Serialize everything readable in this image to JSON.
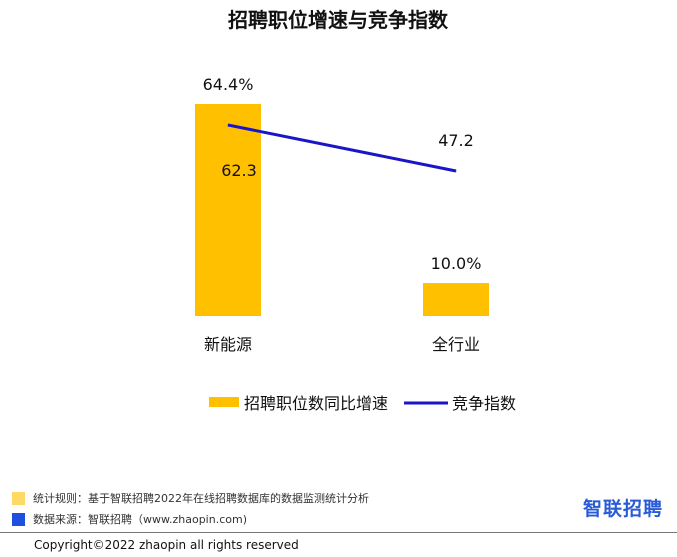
{
  "chart_data": {
    "type": "bar",
    "title": "招聘职位增速与竞争指数",
    "categories": [
      "新能源",
      "全行业"
    ],
    "series": [
      {
        "name": "招聘职位数同比增速",
        "type": "bar",
        "values": [
          64.4,
          10.0
        ],
        "labels": [
          "64.4%",
          "10.0%"
        ],
        "color": "#FFC000"
      },
      {
        "name": "竞争指数",
        "type": "line",
        "values": [
          62.3,
          47.2
        ],
        "labels": [
          "62.3",
          "47.2"
        ],
        "color": "#1A16C8"
      }
    ],
    "legend_position": "bottom",
    "grid": false
  },
  "notes": [
    {
      "text": "统计规则：基于智联招聘2022年在线招聘数据库的数据监测统计分析",
      "color": "#FFD966"
    },
    {
      "text": "数据来源：智联招聘（www.zhaopin.com)",
      "color": "#1F4FE0"
    }
  ],
  "logo_text": "智联招聘",
  "copyright": "Copyright©2022 zhaopin all rights reserved"
}
